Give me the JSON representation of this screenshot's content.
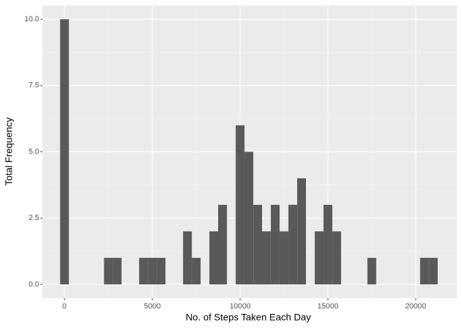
{
  "chart_data": {
    "type": "histogram",
    "x_label": "No. of Steps Taken Each Day",
    "y_label": "Total Frequency",
    "bins": [
      -250,
      250,
      750,
      1250,
      1750,
      2250,
      2750,
      3250,
      3750,
      4250,
      4750,
      5250,
      5750,
      6250,
      6750,
      7250,
      7750,
      8250,
      8750,
      9250,
      9750,
      10250,
      10750,
      11250,
      11750,
      12250,
      12750,
      13250,
      13750,
      14250,
      14750,
      15250,
      15750,
      16250,
      16750,
      17250,
      17750,
      18250,
      18750,
      19250,
      19750,
      20250,
      20750,
      21250
    ],
    "values": [
      10,
      0,
      0,
      0,
      0,
      1,
      1,
      0,
      0,
      1,
      1,
      1,
      0,
      0,
      2,
      1,
      0,
      2,
      3,
      0,
      6,
      5,
      3,
      2,
      3,
      2,
      3,
      4,
      0,
      2,
      3,
      2,
      0,
      0,
      0,
      1,
      0,
      0,
      0,
      0,
      0,
      1,
      1
    ],
    "color": "#595959",
    "xlim": [
      -1250,
      22344
    ],
    "ylim": [
      -0.52,
      10.52
    ],
    "xticks": [
      0,
      5000,
      10000,
      15000,
      20000
    ],
    "yticks": [
      {
        "value": 0,
        "label": "0.0"
      },
      {
        "value": 2.5,
        "label": "2.5"
      },
      {
        "value": 5,
        "label": "5.0"
      },
      {
        "value": 7.5,
        "label": "7.5"
      },
      {
        "value": 10,
        "label": "10.0"
      }
    ],
    "grid": true
  }
}
